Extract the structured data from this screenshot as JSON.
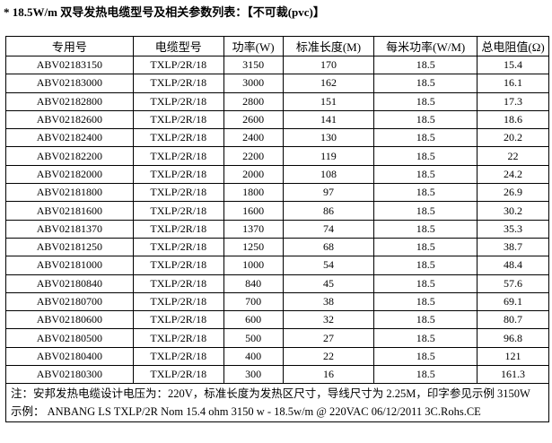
{
  "title": "* 18.5W/m 双导发热电缆型号及相关参数列表：【不可裁(pvc)】",
  "headers": [
    "专用号",
    "电缆型号",
    "功率(W)",
    "标准长度(M)",
    "每米功率(W/M)",
    "总电阻值(Ω)"
  ],
  "rows": [
    [
      "ABV02183150",
      "TXLP/2R/18",
      "3150",
      "170",
      "18.5",
      "15.4"
    ],
    [
      "ABV02183000",
      "TXLP/2R/18",
      "3000",
      "162",
      "18.5",
      "16.1"
    ],
    [
      "ABV02182800",
      "TXLP/2R/18",
      "2800",
      "151",
      "18.5",
      "17.3"
    ],
    [
      "ABV02182600",
      "TXLP/2R/18",
      "2600",
      "141",
      "18.5",
      "18.6"
    ],
    [
      "ABV02182400",
      "TXLP/2R/18",
      "2400",
      "130",
      "18.5",
      "20.2"
    ],
    [
      "ABV02182200",
      "TXLP/2R/18",
      "2200",
      "119",
      "18.5",
      "22"
    ],
    [
      "ABV02182000",
      "TXLP/2R/18",
      "2000",
      "108",
      "18.5",
      "24.2"
    ],
    [
      "ABV02181800",
      "TXLP/2R/18",
      "1800",
      "97",
      "18.5",
      "26.9"
    ],
    [
      "ABV02181600",
      "TXLP/2R/18",
      "1600",
      "86",
      "18.5",
      "30.2"
    ],
    [
      "ABV02181370",
      "TXLP/2R/18",
      "1370",
      "74",
      "18.5",
      "35.3"
    ],
    [
      "ABV02181250",
      "TXLP/2R/18",
      "1250",
      "68",
      "18.5",
      "38.7"
    ],
    [
      "ABV02181000",
      "TXLP/2R/18",
      "1000",
      "54",
      "18.5",
      "48.4"
    ],
    [
      "ABV02180840",
      "TXLP/2R/18",
      "840",
      "45",
      "18.5",
      "57.6"
    ],
    [
      "ABV02180700",
      "TXLP/2R/18",
      "700",
      "38",
      "18.5",
      "69.1"
    ],
    [
      "ABV02180600",
      "TXLP/2R/18",
      "600",
      "32",
      "18.5",
      "80.7"
    ],
    [
      "ABV02180500",
      "TXLP/2R/18",
      "500",
      "27",
      "18.5",
      "96.8"
    ],
    [
      "ABV02180400",
      "TXLP/2R/18",
      "400",
      "22",
      "18.5",
      "121"
    ],
    [
      "ABV02180300",
      "TXLP/2R/18",
      "300",
      "16",
      "18.5",
      "161.3"
    ]
  ],
  "note_line1": "注：安邦发热电缆设计电压为：220V，标准长度为发热区尺寸，导线尺寸为 2.25M，印字参见示例 3150W",
  "note_line2": "示例：  ANBANG LS TXLP/2R Nom 15.4 ohm 3150 w - 18.5w/m @ 220VAC 06/12/2011 3C.Rohs.CE"
}
